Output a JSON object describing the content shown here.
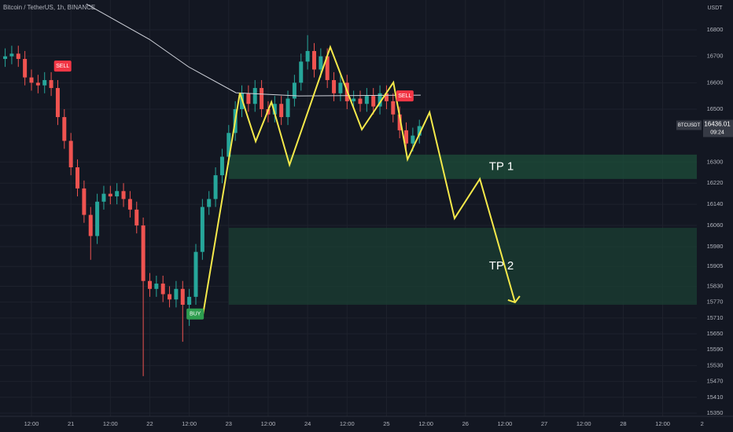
{
  "chart_data": {
    "type": "candlestick",
    "title": "Bitcoin / TetherUS, 1h, BINANCE",
    "y_unit": "USDT",
    "x": [
      4,
      6,
      8,
      10,
      12,
      14,
      16,
      18,
      20,
      22,
      24,
      26,
      28,
      30,
      32,
      34,
      36,
      38,
      40,
      42,
      44,
      46,
      48,
      50,
      52,
      54,
      56,
      58,
      60,
      62,
      64,
      66,
      68,
      70,
      72,
      74,
      76,
      78,
      80,
      82,
      84,
      86,
      88,
      90,
      92,
      94,
      96,
      98,
      100,
      102,
      104,
      106,
      108,
      110,
      112,
      114,
      116,
      118,
      120,
      122,
      124,
      126,
      128,
      130
    ],
    "open": [
      16690,
      16700,
      16710,
      16690,
      16620,
      16600,
      16590,
      16610,
      16580,
      16470,
      16380,
      16280,
      16200,
      16100,
      16020,
      16150,
      16180,
      16170,
      16190,
      16160,
      16120,
      16060,
      15850,
      15820,
      15840,
      15800,
      15780,
      15820,
      15760,
      15790,
      15960,
      16130,
      16160,
      16250,
      16320,
      16410,
      16500,
      16560,
      16520,
      16580,
      16500,
      16480,
      16520,
      16470,
      16540,
      16600,
      16680,
      16720,
      16650,
      16700,
      16610,
      16560,
      16600,
      16530,
      16540,
      16520,
      16550,
      16510,
      16560,
      16530,
      16480,
      16420,
      16370,
      16400
    ],
    "high": [
      16730,
      16740,
      16740,
      16720,
      16650,
      16630,
      16640,
      16640,
      16610,
      16500,
      16410,
      16310,
      16230,
      16130,
      16180,
      16210,
      16210,
      16220,
      16220,
      16190,
      16150,
      16090,
      15880,
      15870,
      15870,
      15830,
      15850,
      15850,
      15820,
      15990,
      16160,
      16190,
      16280,
      16350,
      16440,
      16530,
      16590,
      16590,
      16610,
      16610,
      16530,
      16550,
      16550,
      16570,
      16630,
      16710,
      16780,
      16750,
      16730,
      16730,
      16640,
      16630,
      16630,
      16570,
      16570,
      16580,
      16580,
      16590,
      16590,
      16560,
      16510,
      16450,
      16430,
      16460
    ],
    "low": [
      16660,
      16670,
      16660,
      16590,
      16570,
      16560,
      16560,
      16550,
      16440,
      16350,
      16250,
      16170,
      16070,
      15930,
      15990,
      16120,
      16140,
      16140,
      16130,
      16090,
      16030,
      15490,
      15790,
      15790,
      15770,
      15750,
      15750,
      15620,
      15680,
      15760,
      15930,
      16100,
      16130,
      16220,
      16290,
      16380,
      16470,
      16490,
      16490,
      16470,
      16450,
      16450,
      16440,
      16440,
      16510,
      16570,
      16650,
      16620,
      16620,
      16580,
      16530,
      16530,
      16500,
      16500,
      16490,
      16490,
      16480,
      16480,
      16500,
      16450,
      16390,
      16340,
      16340,
      16370
    ],
    "close": [
      16700,
      16710,
      16690,
      16620,
      16600,
      16590,
      16610,
      16580,
      16470,
      16380,
      16280,
      16200,
      16100,
      16020,
      16150,
      16180,
      16170,
      16190,
      16160,
      16120,
      16060,
      15850,
      15820,
      15840,
      15800,
      15780,
      15820,
      15760,
      15790,
      15960,
      16130,
      16160,
      16250,
      16320,
      16410,
      16500,
      16560,
      16520,
      16580,
      16500,
      16480,
      16520,
      16470,
      16540,
      16600,
      16680,
      16720,
      16650,
      16700,
      16610,
      16560,
      16600,
      16530,
      16540,
      16520,
      16550,
      16510,
      16560,
      16530,
      16480,
      16420,
      16370,
      16400,
      16436.01
    ],
    "up_color": "#26a69a",
    "down_color": "#ef5350",
    "xlim": [
      2.43,
      225.4
    ],
    "ylim": [
      15338,
      16913
    ],
    "grid": true,
    "xticks": [
      {
        "value": 12,
        "label": "12:00"
      },
      {
        "value": 24,
        "label": "21"
      },
      {
        "value": 36,
        "label": "12:00"
      },
      {
        "value": 48,
        "label": "22"
      },
      {
        "value": 60,
        "label": "12:00"
      },
      {
        "value": 72,
        "label": "23"
      },
      {
        "value": 84,
        "label": "12:00"
      },
      {
        "value": 96,
        "label": "24"
      },
      {
        "value": 108,
        "label": "12:00"
      },
      {
        "value": 120,
        "label": "25"
      },
      {
        "value": 132,
        "label": "12:00"
      },
      {
        "value": 144,
        "label": "26"
      },
      {
        "value": 156,
        "label": "12:00"
      },
      {
        "value": 168,
        "label": "27"
      },
      {
        "value": 180,
        "label": "12:00"
      },
      {
        "value": 192,
        "label": "28"
      },
      {
        "value": 204,
        "label": "12:00"
      },
      {
        "value": 216,
        "label": "2"
      }
    ],
    "yticks": [
      16800,
      16700,
      16600,
      16500,
      16300,
      16220,
      16140,
      16060,
      15980,
      15905,
      15830,
      15770,
      15710,
      15650,
      15590,
      15530,
      15470,
      15410,
      15350
    ],
    "zones": [
      {
        "label": "TP 1",
        "x": [
          72,
          215
        ],
        "y": [
          16236,
          16328
        ],
        "color": "#1e4d3a"
      },
      {
        "label": "TP 2",
        "x": [
          72,
          215
        ],
        "y": [
          15760,
          16051
        ],
        "color": "#1b3f33"
      }
    ],
    "lines": [
      {
        "color": "#d1d4dc",
        "x": [
          28.7,
          47.9,
          59.8,
          74.2,
          93.3,
          130.4
        ],
        "values": [
          16898,
          16764,
          16660,
          16562,
          16550,
          16553
        ]
      },
      {
        "color": "#f5e94a",
        "x": [
          64.2,
          75.4,
          80.2,
          85.0,
          90.5,
          102.9,
          112.5,
          122.1,
          126.4,
          133.1,
          140.7,
          148.4,
          159.1
        ],
        "values": [
          15725,
          16562,
          16378,
          16527,
          16289,
          16735,
          16423,
          16601,
          16310,
          16488,
          16087,
          16236,
          15769
        ]
      }
    ],
    "signals": [
      {
        "label": "SELL",
        "x": 21.5,
        "y": 16663,
        "color": "#f23645"
      },
      {
        "label": "SELL",
        "x": 125.6,
        "y": 16550,
        "color": "#f23645"
      },
      {
        "label": "BUY",
        "x": 61.8,
        "y": 15725,
        "color": "#2e9e4f"
      }
    ],
    "last_price": {
      "symbol": "BTCUSDT",
      "value": 16436.01,
      "countdown": "09:24"
    }
  }
}
